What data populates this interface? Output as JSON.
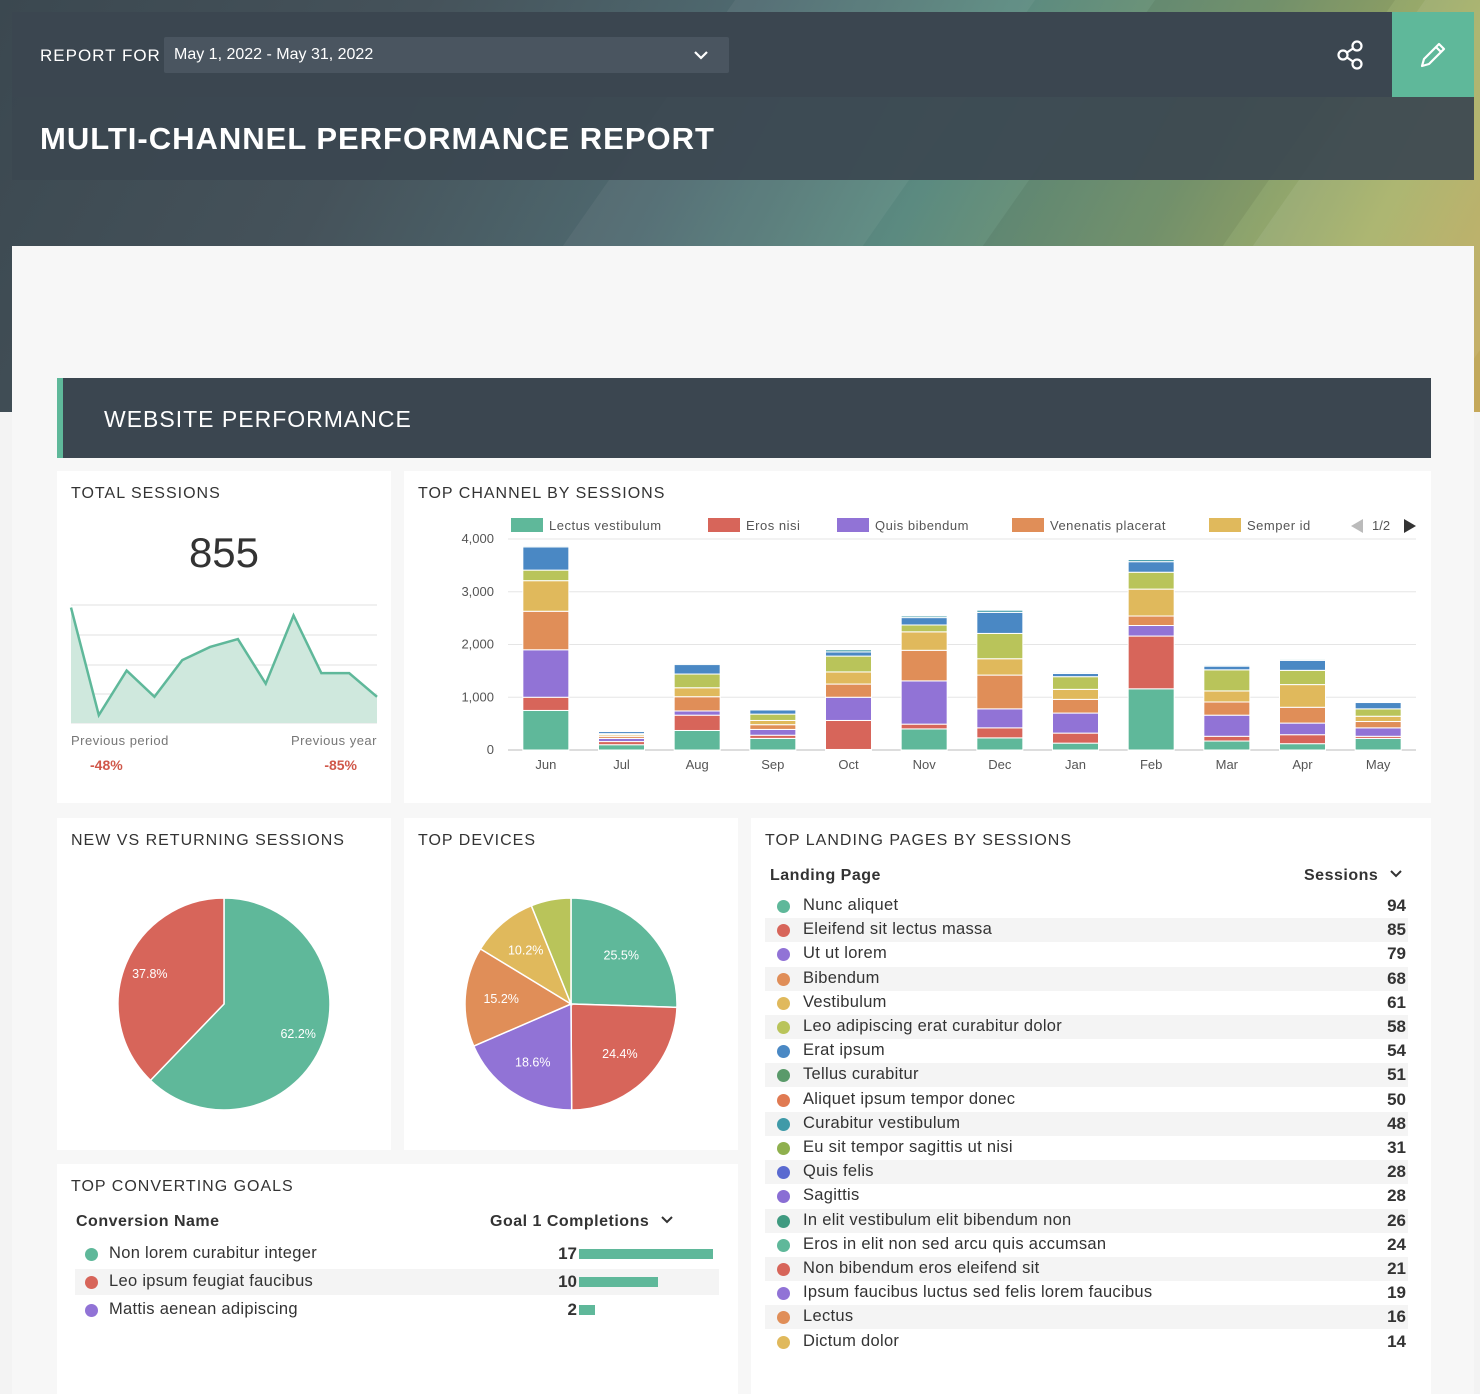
{
  "header": {
    "report_for_label": "REPORT FOR",
    "date_range": "May 1, 2022 - May 31, 2022",
    "title": "MULTI-CHANNEL PERFORMANCE REPORT",
    "accent_color": "#5fb89a",
    "share_icon": "share-icon",
    "edit_icon": "pencil-icon"
  },
  "section": {
    "title": "WEBSITE PERFORMANCE"
  },
  "total_sessions": {
    "title": "TOTAL SESSIONS",
    "value": "855",
    "previous_period_label": "Previous period",
    "previous_period_value": "-48%",
    "previous_year_label": "Previous year",
    "previous_year_value": "-85%",
    "sparkline": [
      44,
      3,
      20,
      10,
      24,
      29,
      32,
      15,
      41,
      19,
      19,
      10
    ]
  },
  "top_channel": {
    "title": "TOP CHANNEL BY SESSIONS",
    "pager": "1/2"
  },
  "new_vs_returning": {
    "title": "NEW VS RETURNING SESSIONS"
  },
  "top_devices": {
    "title": "TOP DEVICES"
  },
  "landing_pages": {
    "title": "TOP LANDING PAGES BY SESSIONS",
    "col_page": "Landing Page",
    "col_sessions": "Sessions",
    "rows": [
      {
        "name": "Nunc aliquet",
        "value": "94",
        "color": "#5fb89a"
      },
      {
        "name": "Eleifend sit lectus massa",
        "value": "85",
        "color": "#d7655a"
      },
      {
        "name": "Ut ut lorem",
        "value": "79",
        "color": "#9173d6"
      },
      {
        "name": "Bibendum",
        "value": "68",
        "color": "#e08e58"
      },
      {
        "name": "Vestibulum",
        "value": "61",
        "color": "#e0b95c"
      },
      {
        "name": "Leo adipiscing erat curabitur dolor",
        "value": "58",
        "color": "#b9c45a"
      },
      {
        "name": "Erat ipsum",
        "value": "54",
        "color": "#4a88c4"
      },
      {
        "name": "Tellus curabitur",
        "value": "51",
        "color": "#5a9a6a"
      },
      {
        "name": "Aliquet ipsum tempor donec",
        "value": "50",
        "color": "#e07a52"
      },
      {
        "name": "Curabitur vestibulum",
        "value": "48",
        "color": "#3f9aa8"
      },
      {
        "name": "Eu sit tempor sagittis ut nisi",
        "value": "31",
        "color": "#8fb04e"
      },
      {
        "name": "Quis felis",
        "value": "28",
        "color": "#5a6ad0"
      },
      {
        "name": "Sagittis",
        "value": "28",
        "color": "#8a6ed4"
      },
      {
        "name": "In elit vestibulum elit bibendum non",
        "value": "26",
        "color": "#3f9a80"
      },
      {
        "name": "Eros in elit non sed arcu quis accumsan",
        "value": "24",
        "color": "#5fb89a"
      },
      {
        "name": "Non bibendum eros eleifend sit",
        "value": "21",
        "color": "#d7655a"
      },
      {
        "name": "Ipsum faucibus luctus sed felis lorem faucibus",
        "value": "19",
        "color": "#9173d6"
      },
      {
        "name": "Lectus",
        "value": "16",
        "color": "#e08e58"
      },
      {
        "name": "Dictum dolor",
        "value": "14",
        "color": "#e0b95c"
      }
    ]
  },
  "goals": {
    "title": "TOP CONVERTING GOALS",
    "col_name": "Conversion Name",
    "col_value": "Goal 1 Completions",
    "rows": [
      {
        "name": "Non lorem curabitur integer",
        "value": "17",
        "color": "#5fb89a"
      },
      {
        "name": "Leo ipsum feugiat faucibus",
        "value": "10",
        "color": "#d7655a"
      },
      {
        "name": "Mattis aenean adipiscing",
        "value": "2",
        "color": "#9173d6"
      }
    ]
  },
  "chart_data": [
    {
      "type": "bar",
      "title": "TOP CHANNEL BY SESSIONS",
      "stacked": true,
      "categories": [
        "Jun",
        "Jul",
        "Aug",
        "Sep",
        "Oct",
        "Nov",
        "Dec",
        "Jan",
        "Feb",
        "Mar",
        "Apr",
        "May"
      ],
      "ylim": [
        0,
        4000
      ],
      "yticks": [
        "0",
        "1,000",
        "2,000",
        "3,000",
        "4,000"
      ],
      "grid": true,
      "legend_position": "top",
      "series": [
        {
          "name": "Lectus vestibulum",
          "color": "#5fb89a",
          "values": [
            750,
            100,
            370,
            220,
            10,
            400,
            230,
            130,
            1160,
            170,
            120,
            220
          ]
        },
        {
          "name": "Eros nisi",
          "color": "#d7655a",
          "values": [
            250,
            60,
            290,
            60,
            550,
            90,
            190,
            190,
            1000,
            90,
            170,
            40
          ]
        },
        {
          "name": "Quis bibendum",
          "color": "#9173d6",
          "values": [
            900,
            60,
            80,
            110,
            440,
            820,
            360,
            380,
            200,
            400,
            220,
            160
          ]
        },
        {
          "name": "Venenatis placerat",
          "color": "#e08e58",
          "values": [
            730,
            40,
            270,
            90,
            250,
            580,
            640,
            260,
            180,
            250,
            300,
            120
          ]
        },
        {
          "name": "Semper id",
          "color": "#e0b95c",
          "values": [
            580,
            30,
            170,
            80,
            230,
            350,
            310,
            190,
            510,
            210,
            430,
            100
          ]
        },
        {
          "name": "",
          "color": "#b9c45a",
          "values": [
            200,
            20,
            260,
            120,
            300,
            130,
            480,
            240,
            320,
            400,
            270,
            140
          ]
        },
        {
          "name": "",
          "color": "#4a88c4",
          "values": [
            440,
            40,
            180,
            80,
            80,
            140,
            400,
            60,
            200,
            70,
            190,
            120
          ]
        },
        {
          "name": "",
          "color": "#3f9aa8",
          "values": [
            20,
            10,
            20,
            10,
            40,
            30,
            40,
            20,
            40,
            20,
            20,
            10
          ]
        }
      ]
    },
    {
      "type": "pie",
      "title": "NEW VS RETURNING SESSIONS",
      "values": [
        62.2,
        37.8
      ],
      "labels": [
        "62.2%",
        "37.8%"
      ],
      "colors": [
        "#5fb89a",
        "#d7655a"
      ]
    },
    {
      "type": "pie",
      "title": "TOP DEVICES",
      "values": [
        25.5,
        24.4,
        18.6,
        15.2,
        10.2,
        6.1
      ],
      "labels": [
        "25.5%",
        "24.4%",
        "18.6%",
        "15.2%",
        "10.2%",
        ""
      ],
      "colors": [
        "#5fb89a",
        "#d7655a",
        "#9173d6",
        "#e08e58",
        "#e0b95c",
        "#b9c45a"
      ]
    }
  ]
}
